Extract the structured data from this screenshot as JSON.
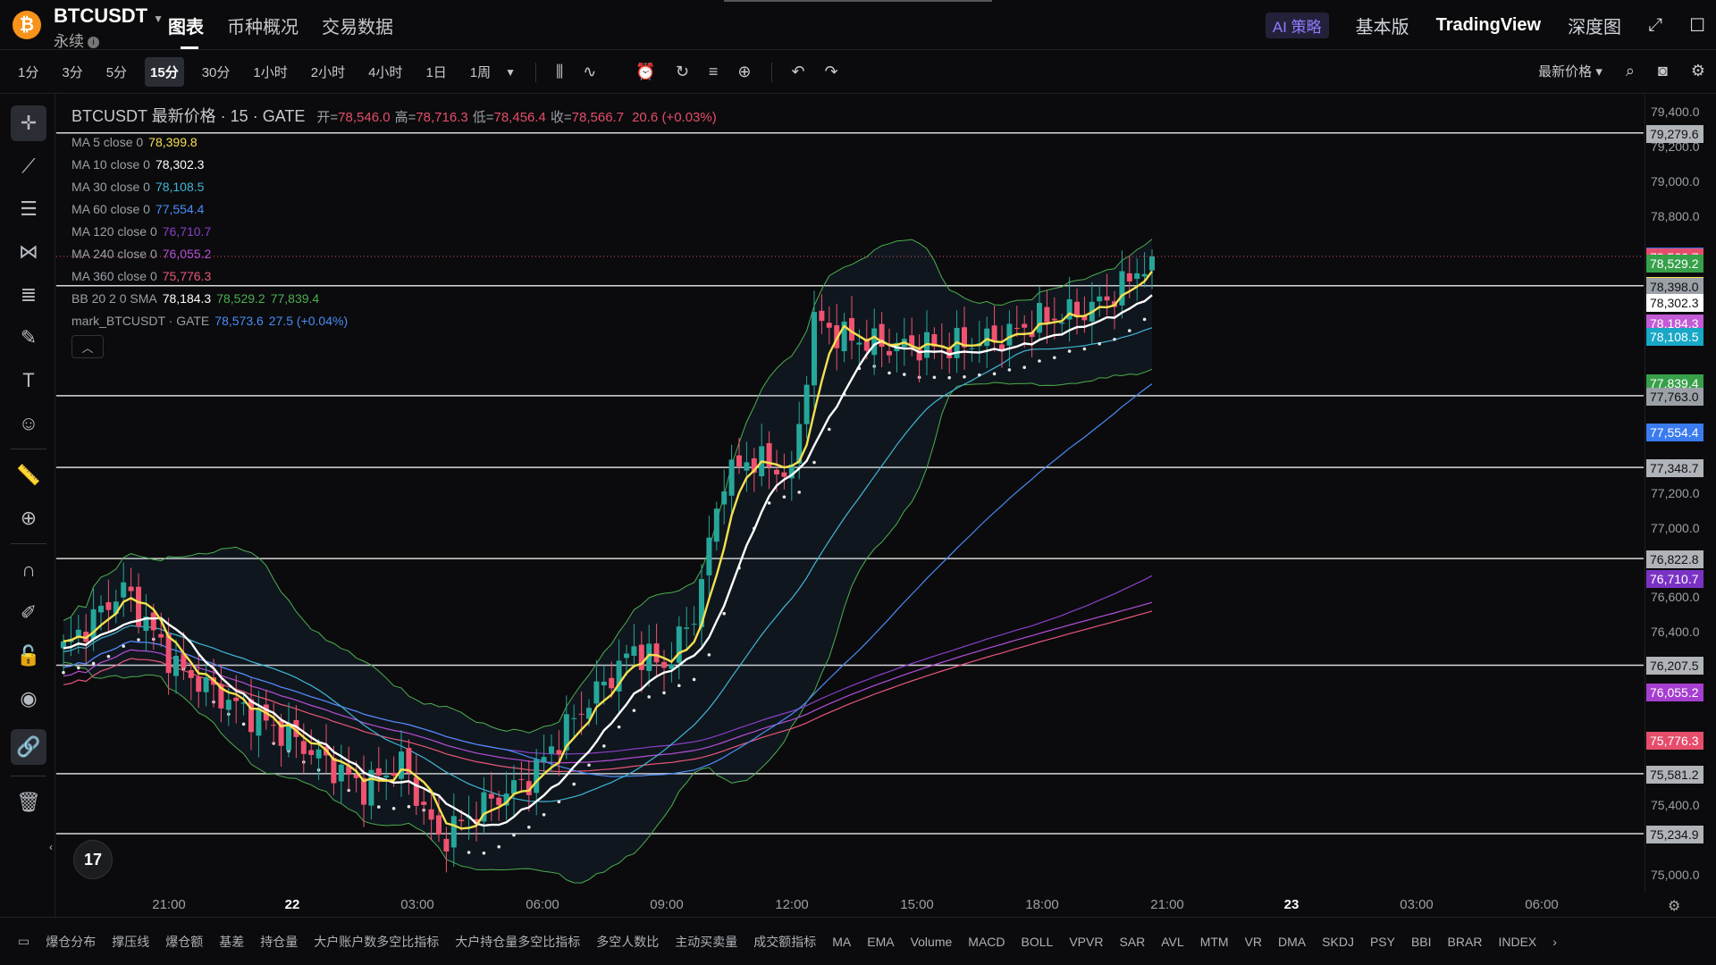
{
  "header": {
    "coin_icon": "bitcoin-icon",
    "symbol": "BTCUSDT",
    "contract_type": "永续",
    "tabs": [
      {
        "label": "图表",
        "active": true
      },
      {
        "label": "币种概况",
        "active": false
      },
      {
        "label": "交易数据",
        "active": false
      }
    ],
    "ai_label": "AI 策略",
    "basic_label": "基本版",
    "tradingview_label": "TradingView",
    "depth_label": "深度图"
  },
  "toolbar": {
    "timeframes": [
      {
        "label": "1分",
        "active": false
      },
      {
        "label": "3分",
        "active": false
      },
      {
        "label": "5分",
        "active": false
      },
      {
        "label": "15分",
        "active": true
      },
      {
        "label": "30分",
        "active": false
      },
      {
        "label": "1小时",
        "active": false
      },
      {
        "label": "2小时",
        "active": false
      },
      {
        "label": "4小时",
        "active": false
      },
      {
        "label": "1日",
        "active": false
      },
      {
        "label": "1周",
        "active": false
      }
    ],
    "price_type": "最新价格"
  },
  "legend": {
    "title": "BTCUSDT 最新价格 · 15 · GATE",
    "open_label": "开=",
    "open": "78,546.0",
    "high_label": "高=",
    "high": "78,716.3",
    "low_label": "低=",
    "low": "78,456.4",
    "close_label": "收=",
    "close": "78,566.7",
    "change": "20.6 (+0.03%)",
    "rows": [
      {
        "label": "MA 5 close 0",
        "values": [
          "78,399.8"
        ],
        "colors": [
          "#f5e050"
        ]
      },
      {
        "label": "MA 10 close 0",
        "values": [
          "78,302.3"
        ],
        "colors": [
          "#ffffff"
        ]
      },
      {
        "label": "MA 30 close 0",
        "values": [
          "78,108.5"
        ],
        "colors": [
          "#3fb7d8"
        ]
      },
      {
        "label": "MA 60 close 0",
        "values": [
          "77,554.4"
        ],
        "colors": [
          "#4a8cf7"
        ]
      },
      {
        "label": "MA 120 close 0",
        "values": [
          "76,710.7"
        ],
        "colors": [
          "#8a3fc9"
        ]
      },
      {
        "label": "MA 240 close 0",
        "values": [
          "76,055.2"
        ],
        "colors": [
          "#b44fd8"
        ]
      },
      {
        "label": "MA 360 close 0",
        "values": [
          "75,776.3"
        ],
        "colors": [
          "#e8577a"
        ]
      },
      {
        "label": "BB 20 2 0 SMA",
        "values": [
          "78,184.3",
          "78,529.2",
          "77,839.4"
        ],
        "colors": [
          "#ffffff",
          "#4caf50",
          "#4caf50"
        ]
      },
      {
        "label": "mark_BTCUSDT · GATE",
        "values": [
          "78,573.6",
          "27.5 (+0.04%)"
        ],
        "colors": [
          "#4a8cf7",
          "#4a8cf7"
        ]
      }
    ]
  },
  "price_axis": {
    "labels": [
      "79,400.0",
      "79,200.0",
      "79,000.0",
      "78,800.0",
      "77,200.0",
      "77,000.0",
      "76,600.0",
      "76,400.0",
      "75,400.0",
      "75,000.0"
    ],
    "tags": [
      {
        "text": "79,279.6",
        "color": "#b0b3b8"
      },
      {
        "text": "78,573.6",
        "color": "#2f6fe4"
      },
      {
        "text": "78,566.7",
        "color": "#e64d6b"
      },
      {
        "text": "78,529.2",
        "color": "#37a04a"
      },
      {
        "text": "78,399.8",
        "color": "#f5e050"
      },
      {
        "text": "78,398.0",
        "color": "#9aa0a6"
      },
      {
        "text": "78,302.3",
        "color": "#ffffff"
      },
      {
        "text": "78,184.3",
        "color": "#c35ad6"
      },
      {
        "text": "78,108.5",
        "color": "#19a7c6"
      },
      {
        "text": "77,839.4",
        "color": "#37a04a"
      },
      {
        "text": "77,763.0",
        "color": "#9aa0a6"
      },
      {
        "text": "77,554.4",
        "color": "#3b7bf0"
      },
      {
        "text": "77,348.7",
        "color": "#b0b3b8"
      },
      {
        "text": "76,822.8",
        "color": "#b0b3b8"
      },
      {
        "text": "76,710.7",
        "color": "#7a32c4"
      },
      {
        "text": "76,207.5",
        "color": "#b0b3b8"
      },
      {
        "text": "76,055.2",
        "color": "#a63fd0"
      },
      {
        "text": "75,776.3",
        "color": "#e64d6b"
      },
      {
        "text": "75,581.2",
        "color": "#b0b3b8"
      },
      {
        "text": "75,234.9",
        "color": "#b0b3b8"
      }
    ]
  },
  "time_axis": {
    "labels": [
      {
        "text": "21:00",
        "bold": false
      },
      {
        "text": "22",
        "bold": true
      },
      {
        "text": "03:00",
        "bold": false
      },
      {
        "text": "06:00",
        "bold": false
      },
      {
        "text": "09:00",
        "bold": false
      },
      {
        "text": "12:00",
        "bold": false
      },
      {
        "text": "15:00",
        "bold": false
      },
      {
        "text": "18:00",
        "bold": false
      },
      {
        "text": "21:00",
        "bold": false
      },
      {
        "text": "23",
        "bold": true
      },
      {
        "text": "03:00",
        "bold": false
      },
      {
        "text": "06:00",
        "bold": false
      }
    ]
  },
  "bottom_indicators": [
    "爆仓分布",
    "撑压线",
    "爆仓额",
    "基差",
    "持仓量",
    "大户账户数多空比指标",
    "大户持仓量多空比指标",
    "多空人数比",
    "主动买卖量",
    "成交额指标",
    "MA",
    "EMA",
    "Volume",
    "MACD",
    "BOLL",
    "VPVR",
    "SAR",
    "AVL",
    "MTM",
    "VR",
    "DMA",
    "SKDJ",
    "PSY",
    "BBI",
    "BRAR",
    "INDEX"
  ],
  "chart_data": {
    "type": "candlestick",
    "symbol": "BTCUSDT",
    "interval": "15m",
    "y_range": [
      74900,
      79500
    ],
    "horizontal_lines": [
      79279.6,
      78398.0,
      77763.0,
      77348.7,
      76822.8,
      76207.5,
      75581.2,
      75234.9
    ],
    "x_ticks": [
      "21:00",
      "22",
      "03:00",
      "06:00",
      "09:00",
      "12:00",
      "15:00",
      "18:00",
      "21:00",
      "23",
      "03:00",
      "06:00"
    ],
    "anchors": [
      [
        0,
        76300
      ],
      [
        8,
        76650
      ],
      [
        15,
        76200
      ],
      [
        22,
        76000
      ],
      [
        30,
        75800
      ],
      [
        40,
        75500
      ],
      [
        45,
        75650
      ],
      [
        50,
        75200
      ],
      [
        56,
        75400
      ],
      [
        62,
        75550
      ],
      [
        68,
        75900
      ],
      [
        72,
        76100
      ],
      [
        76,
        76300
      ],
      [
        80,
        76200
      ],
      [
        84,
        76500
      ],
      [
        88,
        77300
      ],
      [
        92,
        77400
      ],
      [
        97,
        77300
      ],
      [
        100,
        78200
      ],
      [
        104,
        78100
      ],
      [
        110,
        78050
      ],
      [
        118,
        78050
      ],
      [
        125,
        78100
      ],
      [
        130,
        78200
      ],
      [
        136,
        78250
      ],
      [
        140,
        78350
      ],
      [
        145,
        78566.7
      ]
    ],
    "last_close": 78566.7
  }
}
